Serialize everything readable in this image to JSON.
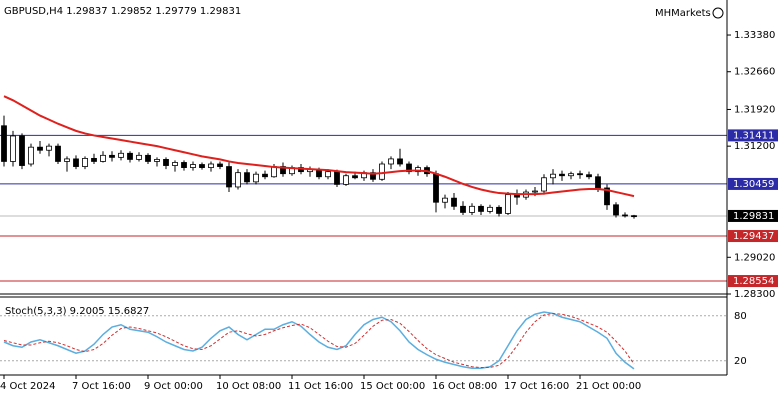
{
  "chart_data": [
    {
      "type": "candlestick",
      "title": "GBPUSD,H4",
      "watermark": "MHMarkets",
      "categories": [
        "4 Oct 2024",
        null,
        null,
        null,
        null,
        null,
        null,
        null,
        "7 Oct 16:00",
        null,
        null,
        null,
        null,
        null,
        null,
        null,
        "9 Oct 00:00",
        null,
        null,
        null,
        null,
        null,
        null,
        null,
        "10 Oct 08:00",
        null,
        null,
        null,
        null,
        null,
        null,
        null,
        "11 Oct 16:00",
        null,
        null,
        null,
        null,
        null,
        null,
        null,
        "15 Oct 00:00",
        null,
        null,
        null,
        null,
        null,
        null,
        null,
        "16 Oct 08:00",
        null,
        null,
        null,
        null,
        null,
        null,
        null,
        "17 Oct 16:00",
        null,
        null,
        null,
        null,
        null,
        null,
        null,
        "21 Oct 00:00",
        null,
        null,
        null,
        null,
        null,
        null
      ],
      "open": [
        1.316,
        1.309,
        1.314,
        1.3085,
        1.3118,
        1.3112,
        1.312,
        1.309,
        1.3095,
        1.308,
        1.3096,
        1.309,
        1.3102,
        1.3098,
        1.3106,
        1.3094,
        1.3102,
        1.309,
        1.3094,
        1.3082,
        1.3088,
        1.3078,
        1.3084,
        1.3078,
        1.3085,
        1.308,
        1.304,
        1.3068,
        1.305,
        1.3065,
        1.306,
        1.308,
        1.3066,
        1.3078,
        1.307,
        1.3074,
        1.306,
        1.307,
        1.3045,
        1.3062,
        1.3058,
        1.3068,
        1.3055,
        1.3085,
        1.3095,
        1.3085,
        1.307,
        1.3078,
        1.3066,
        1.301,
        1.3018,
        1.3002,
        1.299,
        1.3002,
        1.2992,
        1.3,
        1.2988,
        1.3025,
        1.302,
        1.303,
        1.3032,
        1.3058,
        1.3065,
        1.3062,
        1.3066,
        1.3064,
        1.306,
        1.3038,
        1.3005,
        1.2985,
        1.29837
      ],
      "high": [
        1.318,
        1.315,
        1.3145,
        1.3125,
        1.313,
        1.3125,
        1.3125,
        1.31,
        1.3102,
        1.31,
        1.3105,
        1.311,
        1.311,
        1.3112,
        1.311,
        1.3108,
        1.3106,
        1.3098,
        1.3098,
        1.3092,
        1.3092,
        1.309,
        1.3088,
        1.309,
        1.309,
        1.3088,
        1.3075,
        1.3075,
        1.307,
        1.3072,
        1.3085,
        1.3088,
        1.3082,
        1.3085,
        1.308,
        1.3078,
        1.3075,
        1.3074,
        1.3066,
        1.307,
        1.3072,
        1.3075,
        1.309,
        1.31,
        1.3115,
        1.309,
        1.3082,
        1.3082,
        1.3072,
        1.3025,
        1.3028,
        1.3012,
        1.3008,
        1.3006,
        1.3005,
        1.3004,
        1.303,
        1.3035,
        1.3035,
        1.304,
        1.3065,
        1.3075,
        1.3072,
        1.307,
        1.3072,
        1.307,
        1.3066,
        1.3045,
        1.301,
        1.299,
        1.29852
      ],
      "low": [
        1.308,
        1.308,
        1.3075,
        1.308,
        1.3105,
        1.31,
        1.3085,
        1.307,
        1.3075,
        1.3075,
        1.3085,
        1.3088,
        1.309,
        1.3092,
        1.3088,
        1.309,
        1.3085,
        1.308,
        1.3075,
        1.307,
        1.3072,
        1.3072,
        1.3074,
        1.307,
        1.3075,
        1.303,
        1.3035,
        1.3045,
        1.3045,
        1.3055,
        1.3058,
        1.306,
        1.3062,
        1.3065,
        1.306,
        1.3055,
        1.3055,
        1.304,
        1.3042,
        1.3055,
        1.3052,
        1.305,
        1.3052,
        1.3075,
        1.308,
        1.3065,
        1.3062,
        1.306,
        1.299,
        1.2998,
        1.2995,
        1.2985,
        1.2985,
        1.2985,
        1.2988,
        1.2982,
        1.2985,
        1.3005,
        1.3015,
        1.3022,
        1.3025,
        1.3045,
        1.3052,
        1.3055,
        1.3056,
        1.3055,
        1.303,
        1.2995,
        1.298,
        1.298,
        1.29779
      ],
      "close": [
        1.309,
        1.314,
        1.3082,
        1.3118,
        1.3112,
        1.312,
        1.309,
        1.3095,
        1.308,
        1.3096,
        1.309,
        1.3102,
        1.3098,
        1.3106,
        1.3094,
        1.3102,
        1.309,
        1.3094,
        1.3082,
        1.3088,
        1.3078,
        1.3084,
        1.3078,
        1.3085,
        1.308,
        1.304,
        1.3068,
        1.305,
        1.3065,
        1.306,
        1.308,
        1.3066,
        1.3078,
        1.307,
        1.3074,
        1.306,
        1.307,
        1.3045,
        1.3062,
        1.3058,
        1.3068,
        1.3055,
        1.3085,
        1.3095,
        1.3085,
        1.307,
        1.3078,
        1.3066,
        1.301,
        1.3018,
        1.3002,
        1.299,
        1.3002,
        1.2992,
        1.3,
        1.2988,
        1.3025,
        1.302,
        1.303,
        1.3032,
        1.3058,
        1.3065,
        1.3062,
        1.3066,
        1.3064,
        1.306,
        1.3038,
        1.3005,
        1.2985,
        1.29837,
        1.29831
      ],
      "ma_color": "#e0201c",
      "ma_values": [
        1.3218,
        1.321,
        1.32,
        1.319,
        1.318,
        1.3172,
        1.3164,
        1.3157,
        1.315,
        1.3145,
        1.3141,
        1.3138,
        1.3135,
        1.3132,
        1.3129,
        1.3126,
        1.3123,
        1.312,
        1.3116,
        1.3112,
        1.3108,
        1.3104,
        1.31,
        1.3097,
        1.3094,
        1.309,
        1.3087,
        1.3085,
        1.3083,
        1.3081,
        1.3079,
        1.3078,
        1.3077,
        1.3076,
        1.3075,
        1.3074,
        1.3073,
        1.3071,
        1.3069,
        1.3068,
        1.3067,
        1.3066,
        1.3067,
        1.3069,
        1.3071,
        1.3072,
        1.3072,
        1.3071,
        1.3066,
        1.306,
        1.3053,
        1.3046,
        1.304,
        1.3035,
        1.3031,
        1.3028,
        1.3027,
        1.3026,
        1.3026,
        1.3026,
        1.3027,
        1.3029,
        1.3031,
        1.3033,
        1.3035,
        1.3036,
        1.3036,
        1.3034,
        1.303,
        1.3026,
        1.3022
      ],
      "levels": [
        {
          "value": 1.31411,
          "color": "#2b2ba8"
        },
        {
          "value": 1.30459,
          "color": "#2b2ba8"
        },
        {
          "value": 1.29437,
          "color": "#c4262a"
        },
        {
          "value": 1.28554,
          "color": "#c4262a"
        }
      ],
      "ylim": [
        1.283,
        1.34067
      ],
      "yticks": [
        {
          "value": 1.3338,
          "label": "1.33380"
        },
        {
          "value": 1.3266,
          "label": "1.32660"
        },
        {
          "value": 1.3192,
          "label": "1.31920"
        },
        {
          "value": 1.312,
          "label": "1.31200"
        },
        {
          "value": 1.2902,
          "label": "1.29020"
        },
        {
          "value": 1.283,
          "label": "1.28300"
        }
      ]
    },
    {
      "type": "line",
      "title": "Stoch(5,3,3)",
      "lines": [
        {
          "color": "#5aaee0",
          "dash": false,
          "values": [
            45,
            40,
            38,
            45,
            48,
            44,
            40,
            35,
            30,
            33,
            42,
            55,
            65,
            68,
            62,
            60,
            58,
            52,
            45,
            40,
            35,
            33,
            38,
            50,
            60,
            65,
            55,
            48,
            55,
            62,
            62,
            68,
            72,
            66,
            55,
            45,
            38,
            35,
            40,
            55,
            68,
            75,
            78,
            72,
            60,
            45,
            35,
            28,
            22,
            18,
            15,
            12,
            10,
            10,
            12,
            20,
            40,
            60,
            75,
            82,
            85,
            83,
            78,
            75,
            72,
            65,
            58,
            50,
            30,
            18,
            9.2005
          ]
        },
        {
          "color": "#d03030",
          "dash": true,
          "values": [
            47,
            44,
            41,
            41,
            44,
            46,
            44,
            40,
            35,
            32,
            35,
            43,
            54,
            63,
            65,
            63,
            60,
            57,
            52,
            46,
            40,
            36,
            35,
            40,
            49,
            58,
            60,
            56,
            53,
            55,
            60,
            64,
            67,
            69,
            64,
            55,
            46,
            39,
            38,
            43,
            54,
            66,
            74,
            75,
            70,
            59,
            47,
            36,
            28,
            23,
            18,
            15,
            12,
            11,
            11,
            14,
            24,
            40,
            58,
            72,
            81,
            83,
            82,
            79,
            75,
            70,
            65,
            58,
            46,
            33,
            15.6827
          ]
        }
      ],
      "ylim": [
        5,
        105
      ],
      "yticks": [
        20,
        80
      ]
    }
  ]
}
